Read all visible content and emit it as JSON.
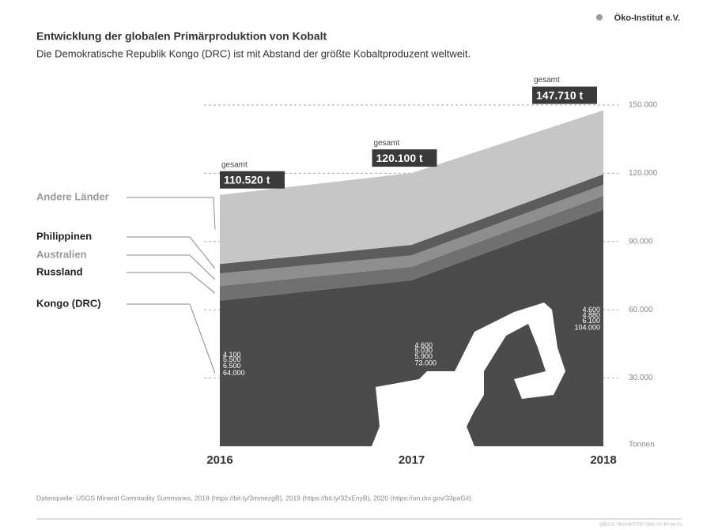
{
  "header": {
    "brand": "Öko-Institut e.V."
  },
  "chart_data": {
    "type": "stacked_area",
    "title": "Entwicklung der globalen Primärproduktion von Kobalt",
    "subtitle": "Die Demokratische Republik Kongo (DRC) ist mit Abstand der größte Kobaltproduzent weltweit.",
    "categories": [
      "2016",
      "2017",
      "2018"
    ],
    "series": [
      {
        "name": "Kongo (DRC)",
        "color": "#4b4b4b",
        "values": [
          64000,
          73000,
          104000
        ],
        "value_labels": [
          "64.000",
          "73.000",
          "104.000"
        ]
      },
      {
        "name": "Russland",
        "color": "#707070",
        "values": [
          6500,
          5900,
          6100
        ],
        "value_labels": [
          "6.500",
          "5.900",
          "6.100"
        ]
      },
      {
        "name": "Australien",
        "color": "#8e8e8e",
        "values": [
          5500,
          5030,
          4880
        ],
        "value_labels": [
          "5.500",
          "5.030",
          "4.880"
        ]
      },
      {
        "name": "Philippinen",
        "color": "#5c5c5c",
        "values": [
          4100,
          4600,
          4600
        ],
        "value_labels": [
          "4.100",
          "4.600",
          "4.600"
        ]
      },
      {
        "name": "Andere Länder",
        "color": "#c6c6c6",
        "values": [
          30420,
          31570,
          28130
        ]
      }
    ],
    "totals": [
      110520,
      120100,
      147710
    ],
    "totals_labels": [
      "110.520 t",
      "120.100 t",
      "147.710 t"
    ],
    "totals_caption": "gesamt",
    "ylim": [
      0,
      150000
    ],
    "yticks": [
      {
        "value": 30000,
        "label": "30.000"
      },
      {
        "value": 60000,
        "label": "60.000"
      },
      {
        "value": 90000,
        "label": "90.000"
      },
      {
        "value": 120000,
        "label": "120.000"
      },
      {
        "value": 150000,
        "label": "150.000"
      }
    ],
    "y_unit": "Tonnen",
    "grid": true
  },
  "footer": {
    "source": "Datenquelle:  USGS Mineral Commodity Summaries, 2018 (https://bit.ly/3mmezgB), 2019 (https://bit.ly/32xEnyB), 2020 (https://on.doi.gov/33paGiI)",
    "credit": "QUELLE: ÖKO-INSTITUT 2020, CC BY-SA 2.0"
  }
}
